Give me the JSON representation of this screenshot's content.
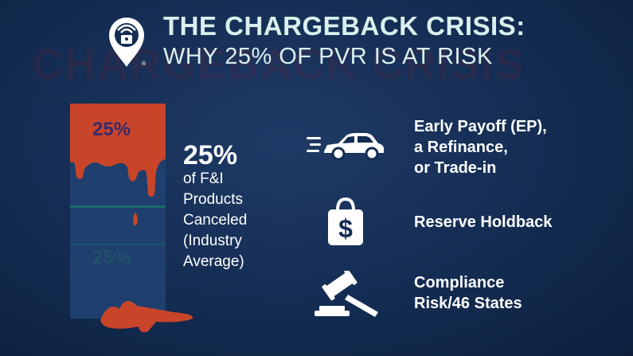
{
  "header": {
    "title_line1": "THE CHARGEBACK CRISIS:",
    "title_line2": "WHY 25% OF PVR IS AT RISK",
    "background_ghost_text": "CHARGEBACK CRISIS"
  },
  "graphic": {
    "fill_fraction": 0.25,
    "label_top": "25%",
    "label_faded": "25%",
    "colors": {
      "red": "#c8452a",
      "glass": "#1f3f6e",
      "teal": "#1b6a6a"
    }
  },
  "stat": {
    "value": "25%",
    "lines": [
      "of F&I",
      "Products",
      "Canceled",
      "(Industry",
      "Average)"
    ]
  },
  "items": [
    {
      "icon": "car-icon",
      "lines": [
        "Early Payoff (EP),",
        "a Refinance,",
        "or Trade-in"
      ]
    },
    {
      "icon": "money-bag-icon",
      "lines": [
        "Reserve Holdback"
      ]
    },
    {
      "icon": "gavel-icon",
      "lines": [
        "Compliance",
        "Risk/46 States"
      ]
    }
  ],
  "colors": {
    "title": "#d9f0ee",
    "background": "#142c52",
    "accent": "#c8452a"
  }
}
